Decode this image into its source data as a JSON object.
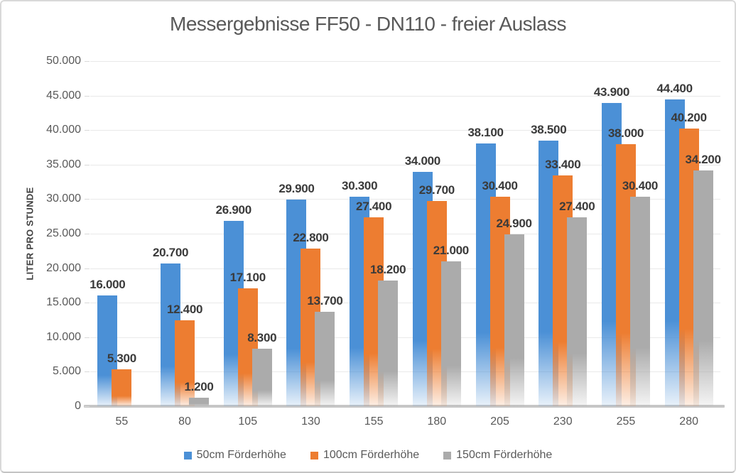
{
  "title": "Messergebnisse FF50 - DN110 - freier Auslass",
  "y_axis": {
    "title": "LITER PRO STUNDE",
    "tick_labels": [
      "50.000",
      "45.000",
      "40.000",
      "35.000",
      "30.000",
      "25.000",
      "20.000",
      "15.000",
      "10.000",
      "5.000",
      "0"
    ]
  },
  "x_axis": {
    "categories": [
      "55",
      "80",
      "105",
      "130",
      "155",
      "180",
      "205",
      "230",
      "255",
      "280"
    ]
  },
  "chart_data": {
    "type": "bar",
    "title": "Messergebnisse FF50 - DN110 - freier Auslass",
    "xlabel": "",
    "ylabel": "LITER PRO STUNDE",
    "ylim": [
      0,
      50000
    ],
    "grid": true,
    "legend_position": "bottom",
    "categories": [
      55,
      80,
      105,
      130,
      155,
      180,
      205,
      230,
      255,
      280
    ],
    "series": [
      {
        "name": "50cm Förderhöhe",
        "color": "#4b90d6",
        "values": [
          16000,
          20700,
          26900,
          29900,
          30300,
          34000,
          38100,
          38500,
          43900,
          44400
        ],
        "labels": [
          "16.000",
          "20.700",
          "26.900",
          "29.900",
          "30.300",
          "34.000",
          "38.100",
          "38.500",
          "43.900",
          "44.400"
        ]
      },
      {
        "name": "100cm Förderhöhe",
        "color": "#ed7d31",
        "values": [
          5300,
          12400,
          17100,
          22800,
          27400,
          29700,
          30400,
          33400,
          38000,
          40200
        ],
        "labels": [
          "5.300",
          "12.400",
          "17.100",
          "22.800",
          "27.400",
          "29.700",
          "30.400",
          "33.400",
          "38.000",
          "40.200"
        ]
      },
      {
        "name": "150cm Förderhöhe",
        "color": "#ababab",
        "values": [
          null,
          1200,
          8300,
          13700,
          18200,
          21000,
          24900,
          27400,
          30400,
          34200
        ],
        "labels": [
          "",
          "1.200",
          "8.300",
          "13.700",
          "18.200",
          "21.000",
          "24.900",
          "27.400",
          "30.400",
          "34.200"
        ]
      }
    ]
  }
}
